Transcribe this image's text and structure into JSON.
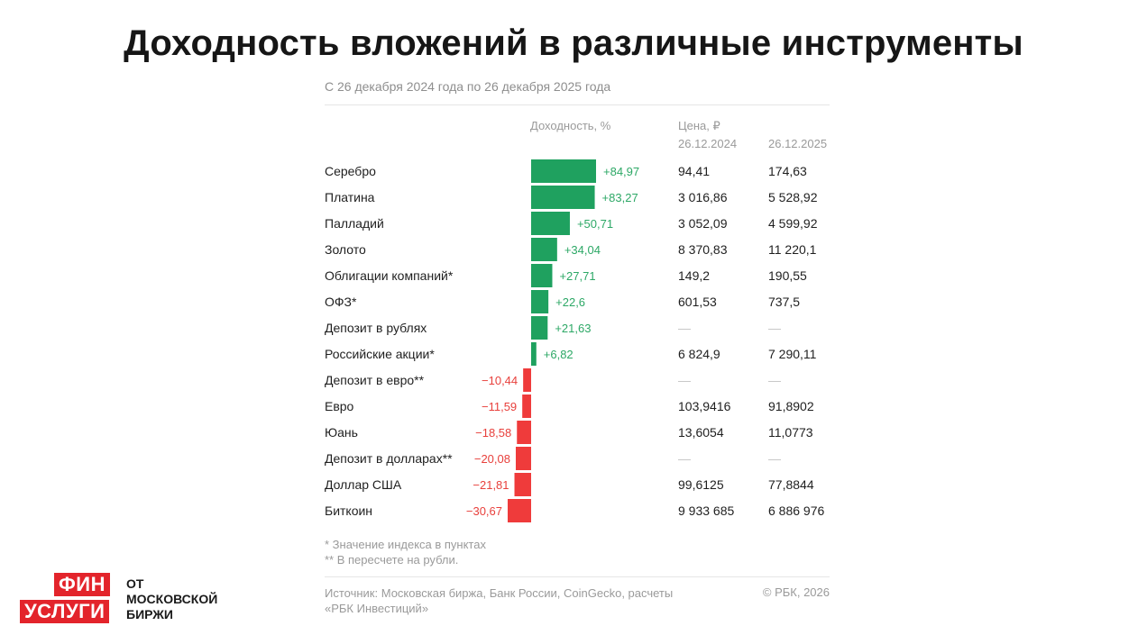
{
  "title": "Доходность вложений в различные инструменты",
  "subtitle": "С 26 декабря 2024 года по 26 декабря 2025 года",
  "headers": {
    "yield": "Доходность, %",
    "price": "Цена, ₽",
    "date1": "26.12.2024",
    "date2": "26.12.2025"
  },
  "rows": [
    {
      "label": "Серебро",
      "value_label": "+84,97",
      "price_2024": "94,41",
      "price_2025": "174,63"
    },
    {
      "label": "Платина",
      "value_label": "+83,27",
      "price_2024": "3 016,86",
      "price_2025": "5 528,92"
    },
    {
      "label": "Палладий",
      "value_label": "+50,71",
      "price_2024": "3 052,09",
      "price_2025": "4 599,92"
    },
    {
      "label": "Золото",
      "value_label": "+34,04",
      "price_2024": "8 370,83",
      "price_2025": "11 220,1"
    },
    {
      "label": "Облигации компаний*",
      "value_label": "+27,71",
      "price_2024": "149,2",
      "price_2025": "190,55"
    },
    {
      "label": "ОФЗ*",
      "value_label": "+22,6",
      "price_2024": "601,53",
      "price_2025": "737,5"
    },
    {
      "label": "Депозит в рублях",
      "value_label": "+21,63",
      "price_2024": "—",
      "price_2025": "—"
    },
    {
      "label": "Российские акции*",
      "value_label": "+6,82",
      "price_2024": "6 824,9",
      "price_2025": "7 290,11"
    },
    {
      "label": "Депозит в евро**",
      "value_label": "−10,44",
      "price_2024": "—",
      "price_2025": "—"
    },
    {
      "label": "Евро",
      "value_label": "−11,59",
      "price_2024": "103,9416",
      "price_2025": "91,8902"
    },
    {
      "label": "Юань",
      "value_label": "−18,58",
      "price_2024": "13,6054",
      "price_2025": "11,0773"
    },
    {
      "label": "Депозит в долларах**",
      "value_label": "−20,08",
      "price_2024": "—",
      "price_2025": "—"
    },
    {
      "label": "Доллар США",
      "value_label": "−21,81",
      "price_2024": "99,6125",
      "price_2025": "77,8844"
    },
    {
      "label": "Биткоин",
      "value_label": "−30,67",
      "price_2024": "9 933 685",
      "price_2025": "6 886 976"
    }
  ],
  "chart_data": {
    "type": "bar",
    "orientation": "horizontal",
    "categories": [
      "Серебро",
      "Платина",
      "Палладий",
      "Золото",
      "Облигации компаний*",
      "ОФЗ*",
      "Депозит в рублях",
      "Российские акции*",
      "Депозит в евро**",
      "Евро",
      "Юань",
      "Депозит в долларах**",
      "Доллар США",
      "Биткоин"
    ],
    "values": [
      84.97,
      83.27,
      50.71,
      34.04,
      27.71,
      22.6,
      21.63,
      6.82,
      -10.44,
      -11.59,
      -18.58,
      -20.08,
      -21.81,
      -30.67
    ],
    "xlabel": "Доходность, %",
    "colors": {
      "positive": "#1fa15f",
      "negative": "#ef3b3b",
      "positive_label": "#2da866",
      "negative_label": "#e8403c"
    }
  },
  "notes": [
    "* Значение индекса в пунктах",
    "** В пересчете на рубли."
  ],
  "source": "Источник: Московская биржа, Банк России, CoinGecko, расчеты «РБК Инвестиций»",
  "copyright": "© РБК, 2026",
  "logo": {
    "line1": "ФИН",
    "line2": "УСЛУГИ",
    "text1": "ОТ",
    "text2": "МОСКОВСКОЙ",
    "text3": "БИРЖИ"
  }
}
